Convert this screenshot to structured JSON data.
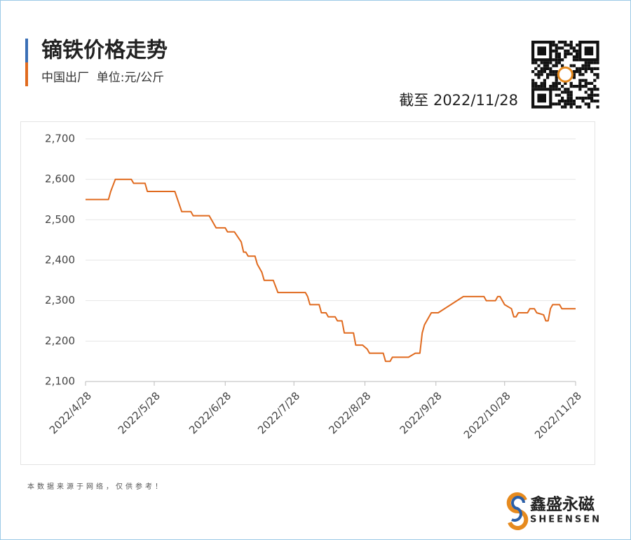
{
  "chart_data": {
    "type": "line",
    "title": "镝铁价格走势",
    "subtitle": "中国出厂  单位:元/公斤",
    "as_of": "截至 2022/11/28",
    "source": "本数据来源于网络，仅供参考！",
    "brand": "鑫盛永磁",
    "brand_en": "SHEENSEN",
    "color": "#e06a1e",
    "grid": true,
    "x": [
      "2022/4/28",
      "2022/5/8",
      "2022/5/9",
      "2022/5/11",
      "2022/5/18",
      "2022/5/19",
      "2022/5/24",
      "2022/5/25",
      "2022/6/6",
      "2022/6/9",
      "2022/6/13",
      "2022/6/14",
      "2022/6/21",
      "2022/6/24",
      "2022/6/28",
      "2022/6/29",
      "2022/7/2",
      "2022/7/5",
      "2022/7/6",
      "2022/7/7",
      "2022/7/8",
      "2022/7/11",
      "2022/7/12",
      "2022/7/14",
      "2022/7/15",
      "2022/7/19",
      "2022/7/21",
      "2022/8/2",
      "2022/8/3",
      "2022/8/4",
      "2022/8/8",
      "2022/8/9",
      "2022/8/11",
      "2022/8/12",
      "2022/8/15",
      "2022/8/16",
      "2022/8/18",
      "2022/8/19",
      "2022/8/23",
      "2022/8/24",
      "2022/8/27",
      "2022/8/29",
      "2022/8/30",
      "2022/9/5",
      "2022/9/6",
      "2022/9/8",
      "2022/9/9",
      "2022/9/16",
      "2022/9/19",
      "2022/9/21",
      "2022/9/22",
      "2022/9/23",
      "2022/9/26",
      "2022/9/29",
      "2022/10/10",
      "2022/10/19",
      "2022/10/20",
      "2022/10/24",
      "2022/10/25",
      "2022/10/26",
      "2022/10/28",
      "2022/10/31",
      "2022/11/1",
      "2022/11/2",
      "2022/11/3",
      "2022/11/7",
      "2022/11/8",
      "2022/11/10",
      "2022/11/11",
      "2022/11/14",
      "2022/11/15",
      "2022/11/16",
      "2022/11/17",
      "2022/11/18",
      "2022/11/21",
      "2022/11/22",
      "2022/11/28"
    ],
    "values": [
      2550,
      2550,
      2570,
      2600,
      2600,
      2590,
      2590,
      2570,
      2570,
      2520,
      2520,
      2510,
      2510,
      2480,
      2480,
      2470,
      2470,
      2445,
      2420,
      2420,
      2410,
      2410,
      2390,
      2370,
      2350,
      2350,
      2320,
      2320,
      2310,
      2290,
      2290,
      2270,
      2270,
      2260,
      2260,
      2250,
      2250,
      2220,
      2220,
      2190,
      2190,
      2180,
      2170,
      2170,
      2150,
      2150,
      2160,
      2160,
      2170,
      2170,
      2220,
      2240,
      2270,
      2270,
      2310,
      2310,
      2300,
      2300,
      2310,
      2310,
      2290,
      2280,
      2260,
      2260,
      2270,
      2270,
      2280,
      2280,
      2270,
      2265,
      2250,
      2250,
      2280,
      2290,
      2290,
      2280,
      2280
    ],
    "xlim": [
      "2022/4/28",
      "2022/11/28"
    ],
    "xticks": [
      "2022/4/28",
      "2022/5/28",
      "2022/6/28",
      "2022/7/28",
      "2022/8/28",
      "2022/9/28",
      "2022/10/28",
      "2022/11/28"
    ],
    "ylim": [
      2100,
      2700
    ],
    "yticks": [
      {
        "value": 2100,
        "label": "2,100"
      },
      {
        "value": 2200,
        "label": "2,200"
      },
      {
        "value": 2300,
        "label": "2,300"
      },
      {
        "value": 2400,
        "label": "2,400"
      },
      {
        "value": 2500,
        "label": "2,500"
      },
      {
        "value": 2600,
        "label": "2,600"
      },
      {
        "value": 2700,
        "label": "2,700"
      }
    ]
  }
}
